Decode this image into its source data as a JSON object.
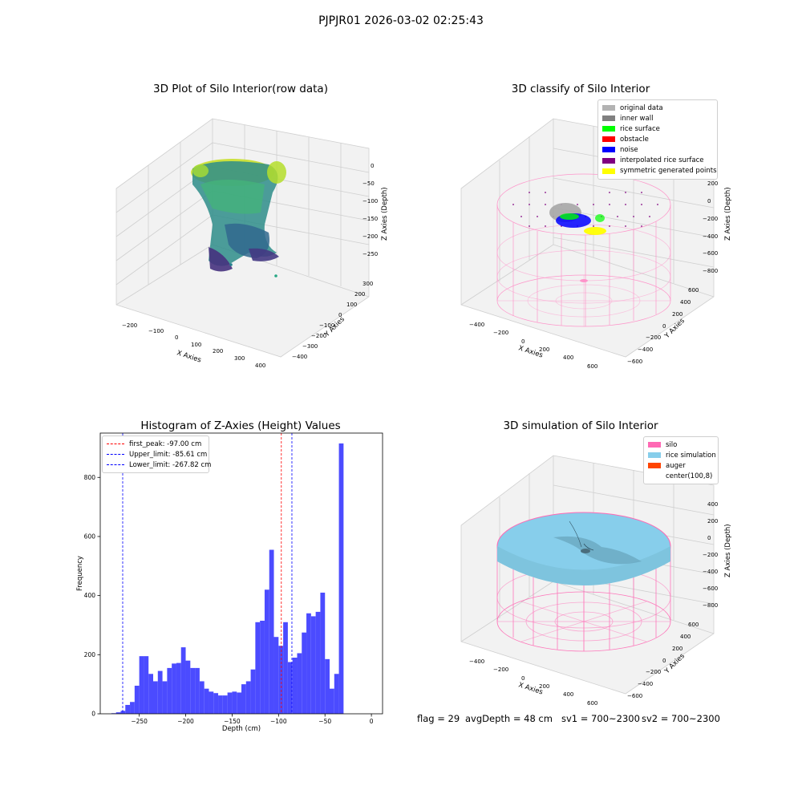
{
  "suptitle": "PJPJR01 2026-03-02 02:25:43",
  "footer": {
    "flag": "flag = 29",
    "avg_depth": "avgDepth = 48 cm",
    "sv1": "sv1 = 700~2300",
    "sv2": "sv2 = 700~2300"
  },
  "chart_data": [
    {
      "type": "scatter",
      "title": "3D Plot of Silo Interior(row data)",
      "xlabel": "X Axies",
      "ylabel": "Y Axies",
      "zlabel": "Z Axies (Depth)",
      "x_ticks": [
        "−200",
        "−100",
        "0",
        "100",
        "200",
        "300",
        "400"
      ],
      "y_ticks": [
        "300",
        "200",
        "100",
        "0",
        "−100",
        "−200",
        "−300",
        "−400"
      ],
      "z_ticks": [
        "0",
        "−50",
        "−100",
        "−150",
        "−200",
        "−250"
      ],
      "colormap": "viridis",
      "z_range": [
        -280,
        0
      ]
    },
    {
      "type": "scatter",
      "title": "3D classify of Silo Interior",
      "xlabel": "X Axies",
      "ylabel": "Y Axies",
      "zlabel": "Z Axies (Depth)",
      "x_ticks": [
        "−400",
        "−200",
        "0",
        "200",
        "400",
        "600"
      ],
      "y_ticks": [
        "600",
        "400",
        "200",
        "0",
        "−200",
        "−400",
        "−600"
      ],
      "z_ticks": [
        "200",
        "0",
        "−200",
        "−400",
        "−600",
        "−800"
      ],
      "legend": [
        {
          "label": "original data",
          "color": "#b3b3b3"
        },
        {
          "label": "inner wall",
          "color": "#808080"
        },
        {
          "label": "rice surface",
          "color": "#00ff00"
        },
        {
          "label": "obstacle",
          "color": "#ff0000"
        },
        {
          "label": "noise",
          "color": "#0000ff"
        },
        {
          "label": "interpolated rice surface",
          "color": "#800080"
        },
        {
          "label": "symmetric generated points",
          "color": "#ffff00"
        }
      ],
      "legend_position": "top-right",
      "silo_color": "#ff69b4"
    },
    {
      "type": "bar",
      "title": "Histogram of Z-Axies (Height) Values",
      "xlabel": "Depth (cm)",
      "ylabel": "Frequency",
      "bin_width": 5,
      "bin_starts": [
        -290,
        -285,
        -280,
        -275,
        -270,
        -265,
        -260,
        -255,
        -250,
        -245,
        -240,
        -235,
        -230,
        -225,
        -220,
        -215,
        -210,
        -205,
        -200,
        -195,
        -190,
        -185,
        -180,
        -175,
        -170,
        -165,
        -160,
        -155,
        -150,
        -145,
        -140,
        -135,
        -130,
        -125,
        -120,
        -115,
        -110,
        -105,
        -100,
        -95,
        -90,
        -85,
        -80,
        -75,
        -70,
        -65,
        -60,
        -55,
        -50,
        -45,
        -40,
        -35,
        -30,
        -25,
        -20,
        -15,
        -10,
        -5
      ],
      "values": [
        2,
        5,
        10,
        30,
        40,
        95,
        195,
        195,
        135,
        110,
        145,
        110,
        155,
        170,
        172,
        225,
        180,
        155,
        155,
        110,
        85,
        75,
        70,
        62,
        62,
        72,
        75,
        72,
        100,
        110,
        150,
        310,
        315,
        420,
        555,
        260,
        230,
        310,
        175,
        190,
        205,
        275,
        340,
        330,
        345,
        410,
        185,
        85,
        135,
        915
      ],
      "values_start_bin": -280,
      "xlim": [
        -292,
        12
      ],
      "ylim": [
        0,
        950
      ],
      "x_ticks": [
        -250,
        -200,
        -150,
        -100,
        -50,
        0
      ],
      "y_ticks": [
        0,
        200,
        400,
        600,
        800
      ],
      "bar_color": "#4b4bff",
      "markers": [
        {
          "label": "first_peak: -97.00 cm",
          "x": -97.0,
          "color": "#ff0000"
        },
        {
          "label": "Upper_limit: -85.61 cm",
          "x": -85.61,
          "color": "#0000ff"
        },
        {
          "label": "Lower_limit: -267.82 cm",
          "x": -267.82,
          "color": "#0000ff"
        }
      ],
      "legend_position": "top-left",
      "grid": false
    },
    {
      "type": "surface",
      "title": "3D simulation of Silo Interior",
      "xlabel": "X Axies",
      "ylabel": "Y Axies",
      "zlabel": "Z Axies (Depth)",
      "x_ticks": [
        "−400",
        "−200",
        "0",
        "200",
        "400",
        "600"
      ],
      "y_ticks": [
        "600",
        "400",
        "200",
        "0",
        "−200",
        "−400",
        "−600"
      ],
      "z_ticks": [
        "400",
        "200",
        "0",
        "−200",
        "−400",
        "−600",
        "−800"
      ],
      "legend": [
        {
          "label": "silo",
          "color": "#ff69b4"
        },
        {
          "label": "rice simulation",
          "color": "#87ceeb"
        },
        {
          "label": "auger",
          "color": "#ff4500"
        },
        {
          "label": "center(100,8)",
          "color": "#ffffff"
        }
      ],
      "legend_position": "top-right"
    }
  ]
}
